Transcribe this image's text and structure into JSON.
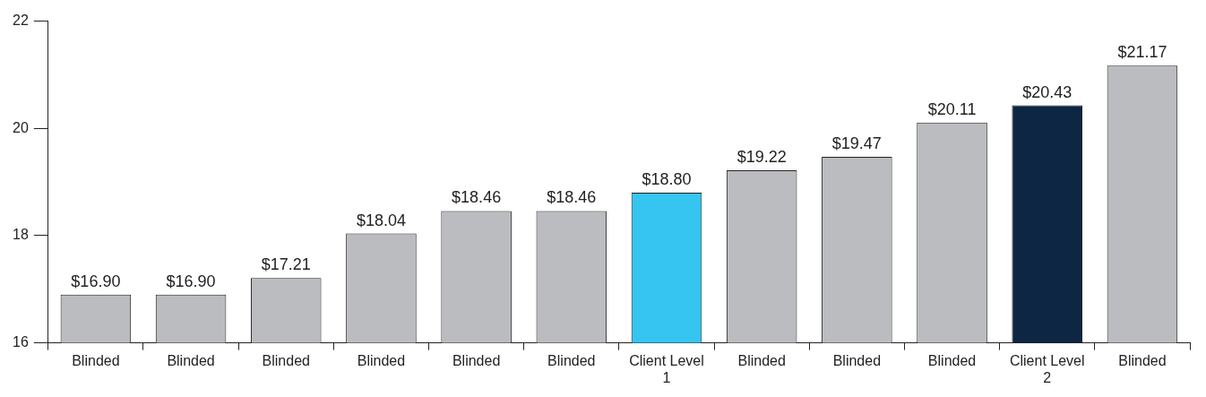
{
  "chart_data": {
    "type": "bar",
    "categories": [
      "Blinded",
      "Blinded",
      "Blinded",
      "Blinded",
      "Blinded",
      "Blinded",
      "Client Level 1",
      "Blinded",
      "Blinded",
      "Blinded",
      "Client Level 2",
      "Blinded"
    ],
    "values": [
      16.9,
      16.9,
      17.21,
      18.04,
      18.46,
      18.46,
      18.8,
      19.22,
      19.47,
      20.11,
      20.43,
      21.17
    ],
    "value_labels": [
      "$16.90",
      "$16.90",
      "$17.21",
      "$18.04",
      "$18.46",
      "$18.46",
      "$18.80",
      "$19.22",
      "$19.47",
      "$20.11",
      "$20.43",
      "$21.17"
    ],
    "colors": [
      "#bbbcc0",
      "#bbbcc0",
      "#bbbcc0",
      "#bbbcc0",
      "#bbbcc0",
      "#bbbcc0",
      "#35c5f0",
      "#bbbcc0",
      "#bbbcc0",
      "#bbbcc0",
      "#0c2644",
      "#bbbcc0"
    ],
    "ylim": [
      16,
      22
    ],
    "yticks": [
      16,
      18,
      20,
      22
    ],
    "grid": false,
    "legend": false
  }
}
